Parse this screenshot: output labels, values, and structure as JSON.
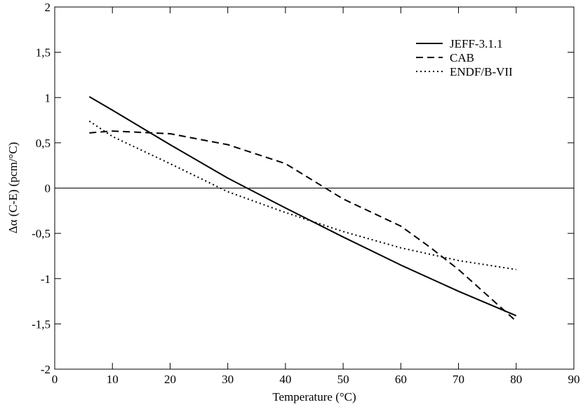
{
  "chart_data": {
    "type": "line",
    "title": "",
    "xlabel": "Temperature (°C)",
    "ylabel": "Δα (C-E) (pcm/°C)",
    "xlim": [
      0,
      90
    ],
    "ylim": [
      -2,
      2
    ],
    "xticks": [
      0,
      10,
      20,
      30,
      40,
      50,
      60,
      70,
      80,
      90
    ],
    "yticks": [
      -2,
      -1.5,
      -1,
      -0.5,
      0,
      0.5,
      1,
      1.5,
      2
    ],
    "xtick_labels": [
      "0",
      "10",
      "20",
      "30",
      "40",
      "50",
      "60",
      "70",
      "80",
      "90"
    ],
    "ytick_labels": [
      "-2",
      "-1,5",
      "-1",
      "-0,5",
      "0",
      "0,5",
      "1",
      "1,5",
      "2"
    ],
    "grid": false,
    "zero_line": true,
    "legend_position": "top-right",
    "series": [
      {
        "name": "JEFF-3.1.1",
        "style": "solid",
        "x": [
          6,
          10,
          20,
          30,
          40,
          50,
          60,
          70,
          80
        ],
        "y": [
          1.01,
          0.86,
          0.48,
          0.11,
          -0.22,
          -0.54,
          -0.85,
          -1.14,
          -1.41
        ]
      },
      {
        "name": "CAB",
        "style": "dashed",
        "x": [
          6,
          10,
          20,
          30,
          40,
          50,
          60,
          65,
          70,
          80
        ],
        "y": [
          0.61,
          0.63,
          0.6,
          0.48,
          0.27,
          -0.12,
          -0.42,
          -0.65,
          -0.9,
          -1.47
        ]
      },
      {
        "name": "ENDF/B-VII",
        "style": "dotted",
        "x": [
          6,
          10,
          20,
          30,
          40,
          50,
          60,
          70,
          80
        ],
        "y": [
          0.74,
          0.57,
          0.27,
          -0.04,
          -0.27,
          -0.48,
          -0.66,
          -0.8,
          -0.9
        ]
      }
    ]
  }
}
